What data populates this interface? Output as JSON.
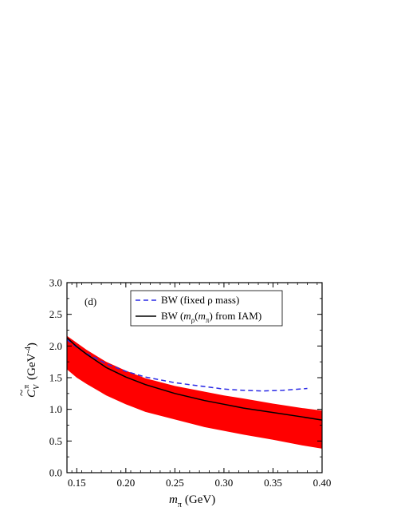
{
  "chart_data": {
    "type": "line",
    "panel_label": "(d)",
    "xlabel": {
      "symbol": "m",
      "sub": "π",
      "unit": "(GeV)"
    },
    "ylabel": {
      "tilde": "~",
      "symbol": "C",
      "sub": "V",
      "sup": "π",
      "unit_prefix": "(GeV",
      "unit_exp": "-4",
      "unit_suffix": ")"
    },
    "xlim": [
      0.14,
      0.4
    ],
    "ylim": [
      0.0,
      3.0
    ],
    "xticks": [
      "0.15",
      "0.20",
      "0.25",
      "0.30",
      "0.35",
      "0.40"
    ],
    "yticks": [
      "0.0",
      "0.5",
      "1.0",
      "1.5",
      "2.0",
      "2.5",
      "3.0"
    ],
    "legend_position": "top-right",
    "colors": {
      "band": "#ff0000",
      "dashed": "#2a2ae6",
      "solid": "#000000"
    },
    "band": {
      "x": [
        0.14,
        0.15,
        0.16,
        0.18,
        0.2,
        0.22,
        0.25,
        0.28,
        0.3,
        0.32,
        0.35,
        0.38,
        0.4
      ],
      "upper": [
        2.16,
        2.05,
        1.94,
        1.75,
        1.61,
        1.49,
        1.37,
        1.28,
        1.22,
        1.17,
        1.09,
        1.02,
        0.98
      ],
      "lower": [
        1.63,
        1.5,
        1.4,
        1.22,
        1.08,
        0.96,
        0.84,
        0.72,
        0.66,
        0.6,
        0.52,
        0.43,
        0.38
      ]
    },
    "series": [
      {
        "legend": "BW (fixed ρ mass)",
        "style": "dashed",
        "x": [
          0.14,
          0.15,
          0.16,
          0.18,
          0.2,
          0.22,
          0.25,
          0.28,
          0.3,
          0.32,
          0.34,
          0.36,
          0.385
        ],
        "y": [
          2.1,
          1.98,
          1.88,
          1.72,
          1.6,
          1.51,
          1.42,
          1.36,
          1.32,
          1.3,
          1.29,
          1.3,
          1.33
        ]
      },
      {
        "legend_parts": [
          "BW (",
          "m",
          "ρ",
          "(",
          "m",
          "π",
          ") from IAM)"
        ],
        "style": "solid",
        "x": [
          0.14,
          0.15,
          0.16,
          0.18,
          0.2,
          0.22,
          0.25,
          0.28,
          0.3,
          0.32,
          0.35,
          0.38,
          0.4
        ],
        "y": [
          2.13,
          1.99,
          1.87,
          1.66,
          1.51,
          1.39,
          1.25,
          1.14,
          1.08,
          1.02,
          0.95,
          0.88,
          0.83
        ]
      }
    ]
  }
}
